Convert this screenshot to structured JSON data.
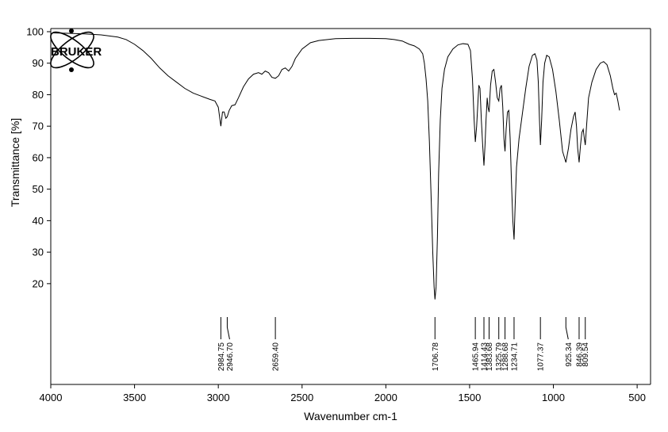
{
  "logo": {
    "text": "BRUKER"
  },
  "chart_data": {
    "type": "line",
    "title": "",
    "xlabel": "Wavenumber cm-1",
    "ylabel": "Transmittance [%]",
    "xlim": [
      4000,
      420
    ],
    "x_reversed": true,
    "ylim": [
      -12,
      101
    ],
    "x_ticks": [
      4000,
      3500,
      3000,
      2500,
      2000,
      1500,
      1000,
      500
    ],
    "y_ticks": [
      20,
      30,
      40,
      50,
      60,
      70,
      80,
      90,
      100
    ],
    "grid": false,
    "legend": "none",
    "peak_labels": [
      "2984.75",
      "2946.70",
      "2659.40",
      "1706.78",
      "1465.94",
      "1414.43",
      "1383.68",
      "1325.79",
      "1288.68",
      "1234.71",
      "1077.37",
      "925.34",
      "846.39",
      "809.54"
    ],
    "peaks": [
      2984.75,
      2946.7,
      2659.4,
      1706.78,
      1465.94,
      1414.43,
      1383.68,
      1325.79,
      1288.68,
      1234.71,
      1077.37,
      925.34,
      846.39,
      809.54
    ],
    "series": [
      {
        "points": [
          [
            3990,
            99.6
          ],
          [
            3900,
            99.5
          ],
          [
            3800,
            99.3
          ],
          [
            3700,
            99.0
          ],
          [
            3600,
            98.3
          ],
          [
            3550,
            97.5
          ],
          [
            3500,
            96.0
          ],
          [
            3450,
            94.0
          ],
          [
            3400,
            91.5
          ],
          [
            3350,
            88.5
          ],
          [
            3300,
            86.0
          ],
          [
            3250,
            84.0
          ],
          [
            3200,
            82.0
          ],
          [
            3150,
            80.5
          ],
          [
            3100,
            79.5
          ],
          [
            3050,
            78.5
          ],
          [
            3020,
            78.0
          ],
          [
            3000,
            76.0
          ],
          [
            2990,
            72.0
          ],
          [
            2984.75,
            70.0
          ],
          [
            2975,
            74.5
          ],
          [
            2965,
            74.5
          ],
          [
            2955,
            72.5
          ],
          [
            2946.7,
            73.0
          ],
          [
            2935,
            75.0
          ],
          [
            2920,
            76.5
          ],
          [
            2900,
            76.8
          ],
          [
            2880,
            79.0
          ],
          [
            2850,
            82.5
          ],
          [
            2820,
            85.0
          ],
          [
            2790,
            86.5
          ],
          [
            2760,
            87.0
          ],
          [
            2740,
            86.5
          ],
          [
            2720,
            87.5
          ],
          [
            2700,
            87.0
          ],
          [
            2680,
            85.5
          ],
          [
            2659.4,
            85.2
          ],
          [
            2640,
            86.0
          ],
          [
            2620,
            88.0
          ],
          [
            2600,
            88.5
          ],
          [
            2580,
            87.5
          ],
          [
            2560,
            89.0
          ],
          [
            2540,
            91.5
          ],
          [
            2500,
            94.5
          ],
          [
            2450,
            96.5
          ],
          [
            2400,
            97.2
          ],
          [
            2300,
            97.8
          ],
          [
            2200,
            97.9
          ],
          [
            2100,
            97.9
          ],
          [
            2000,
            97.8
          ],
          [
            1950,
            97.5
          ],
          [
            1900,
            97.0
          ],
          [
            1860,
            96.0
          ],
          [
            1830,
            95.5
          ],
          [
            1800,
            94.5
          ],
          [
            1780,
            93.0
          ],
          [
            1770,
            90.0
          ],
          [
            1760,
            85.0
          ],
          [
            1750,
            78.0
          ],
          [
            1740,
            65.0
          ],
          [
            1730,
            48.0
          ],
          [
            1720,
            30.0
          ],
          [
            1712,
            19.0
          ],
          [
            1706.78,
            15.0
          ],
          [
            1700,
            19.0
          ],
          [
            1692,
            35.0
          ],
          [
            1685,
            55.0
          ],
          [
            1675,
            72.0
          ],
          [
            1665,
            82.0
          ],
          [
            1650,
            88.0
          ],
          [
            1630,
            92.0
          ],
          [
            1600,
            94.5
          ],
          [
            1570,
            95.8
          ],
          [
            1540,
            96.2
          ],
          [
            1510,
            96.0
          ],
          [
            1495,
            94.0
          ],
          [
            1483,
            85.0
          ],
          [
            1473,
            72.0
          ],
          [
            1465.94,
            65.0
          ],
          [
            1458,
            70.0
          ],
          [
            1450,
            78.0
          ],
          [
            1445,
            83.0
          ],
          [
            1438,
            82.0
          ],
          [
            1430,
            72.0
          ],
          [
            1422,
            64.0
          ],
          [
            1414.43,
            57.5
          ],
          [
            1408,
            64.0
          ],
          [
            1402,
            72.0
          ],
          [
            1395,
            79.0
          ],
          [
            1390,
            76.0
          ],
          [
            1383.68,
            74.5
          ],
          [
            1375,
            83.0
          ],
          [
            1365,
            87.5
          ],
          [
            1355,
            88.0
          ],
          [
            1345,
            84.0
          ],
          [
            1335,
            79.0
          ],
          [
            1325.79,
            78.0
          ],
          [
            1318,
            82.0
          ],
          [
            1310,
            83.0
          ],
          [
            1302,
            76.0
          ],
          [
            1295,
            66.0
          ],
          [
            1288.68,
            62.0
          ],
          [
            1282,
            69.0
          ],
          [
            1274,
            74.5
          ],
          [
            1266,
            75.0
          ],
          [
            1258,
            66.0
          ],
          [
            1250,
            52.0
          ],
          [
            1242,
            40.0
          ],
          [
            1234.71,
            34.0
          ],
          [
            1228,
            45.0
          ],
          [
            1220,
            57.0
          ],
          [
            1205,
            66.0
          ],
          [
            1185,
            74.0
          ],
          [
            1165,
            82.0
          ],
          [
            1145,
            89.0
          ],
          [
            1125,
            92.5
          ],
          [
            1110,
            93.0
          ],
          [
            1098,
            91.0
          ],
          [
            1090,
            84.0
          ],
          [
            1083,
            72.0
          ],
          [
            1077.37,
            64.0
          ],
          [
            1070,
            72.0
          ],
          [
            1062,
            84.0
          ],
          [
            1052,
            90.0
          ],
          [
            1040,
            92.5
          ],
          [
            1025,
            92.0
          ],
          [
            1005,
            88.0
          ],
          [
            985,
            81.0
          ],
          [
            965,
            72.0
          ],
          [
            945,
            62.0
          ],
          [
            925.34,
            58.5
          ],
          [
            910,
            63.0
          ],
          [
            895,
            69.0
          ],
          [
            880,
            73.0
          ],
          [
            870,
            74.5
          ],
          [
            862,
            70.0
          ],
          [
            855,
            63.0
          ],
          [
            846.39,
            58.5
          ],
          [
            838,
            64.0
          ],
          [
            830,
            68.0
          ],
          [
            822,
            69.0
          ],
          [
            815,
            66.0
          ],
          [
            809.54,
            64.0
          ],
          [
            802,
            70.0
          ],
          [
            790,
            79.0
          ],
          [
            770,
            84.0
          ],
          [
            745,
            88.0
          ],
          [
            720,
            90.0
          ],
          [
            700,
            90.5
          ],
          [
            680,
            89.5
          ],
          [
            660,
            86.0
          ],
          [
            645,
            82.0
          ],
          [
            635,
            80.0
          ],
          [
            625,
            80.5
          ],
          [
            615,
            78.0
          ],
          [
            605,
            75.0
          ]
        ]
      }
    ]
  }
}
